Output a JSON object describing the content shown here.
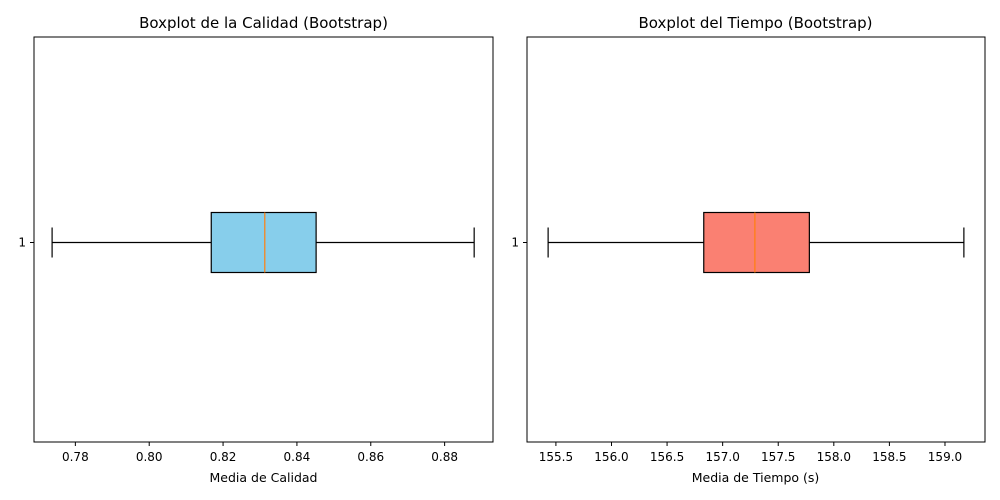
{
  "chart_data": [
    {
      "type": "boxplot",
      "orientation": "horizontal",
      "title": "Boxplot de la Calidad (Bootstrap)",
      "xlabel": "Media de Calidad",
      "ylabel": "",
      "xlim": [
        0.7688,
        0.8931
      ],
      "xticks": [
        0.78,
        0.8,
        0.82,
        0.84,
        0.86,
        0.88
      ],
      "xtick_labels": [
        "0.78",
        "0.80",
        "0.82",
        "0.84",
        "0.86",
        "0.88"
      ],
      "categories": [
        "1"
      ],
      "box": {
        "whisker_low": 0.7737,
        "q1": 0.8168,
        "median": 0.8313,
        "q3": 0.8452,
        "whisker_high": 0.888
      },
      "box_color": "#87ceeb",
      "median_color": "#ff7f0e",
      "grid": false
    },
    {
      "type": "boxplot",
      "orientation": "horizontal",
      "title": "Boxplot del Tiempo (Bootstrap)",
      "xlabel": "Media de Tiempo (s)",
      "ylabel": "",
      "xlim": [
        155.24,
        159.36
      ],
      "xticks": [
        155.5,
        156.0,
        156.5,
        157.0,
        157.5,
        158.0,
        158.5,
        159.0
      ],
      "xtick_labels": [
        "155.5",
        "156.0",
        "156.5",
        "157.0",
        "157.5",
        "158.0",
        "158.5",
        "159.0"
      ],
      "categories": [
        "1"
      ],
      "box": {
        "whisker_low": 155.43,
        "q1": 156.83,
        "median": 157.29,
        "q3": 157.78,
        "whisker_high": 159.17
      },
      "box_color": "#fa8072",
      "median_color": "#ff7f0e",
      "grid": false
    }
  ]
}
